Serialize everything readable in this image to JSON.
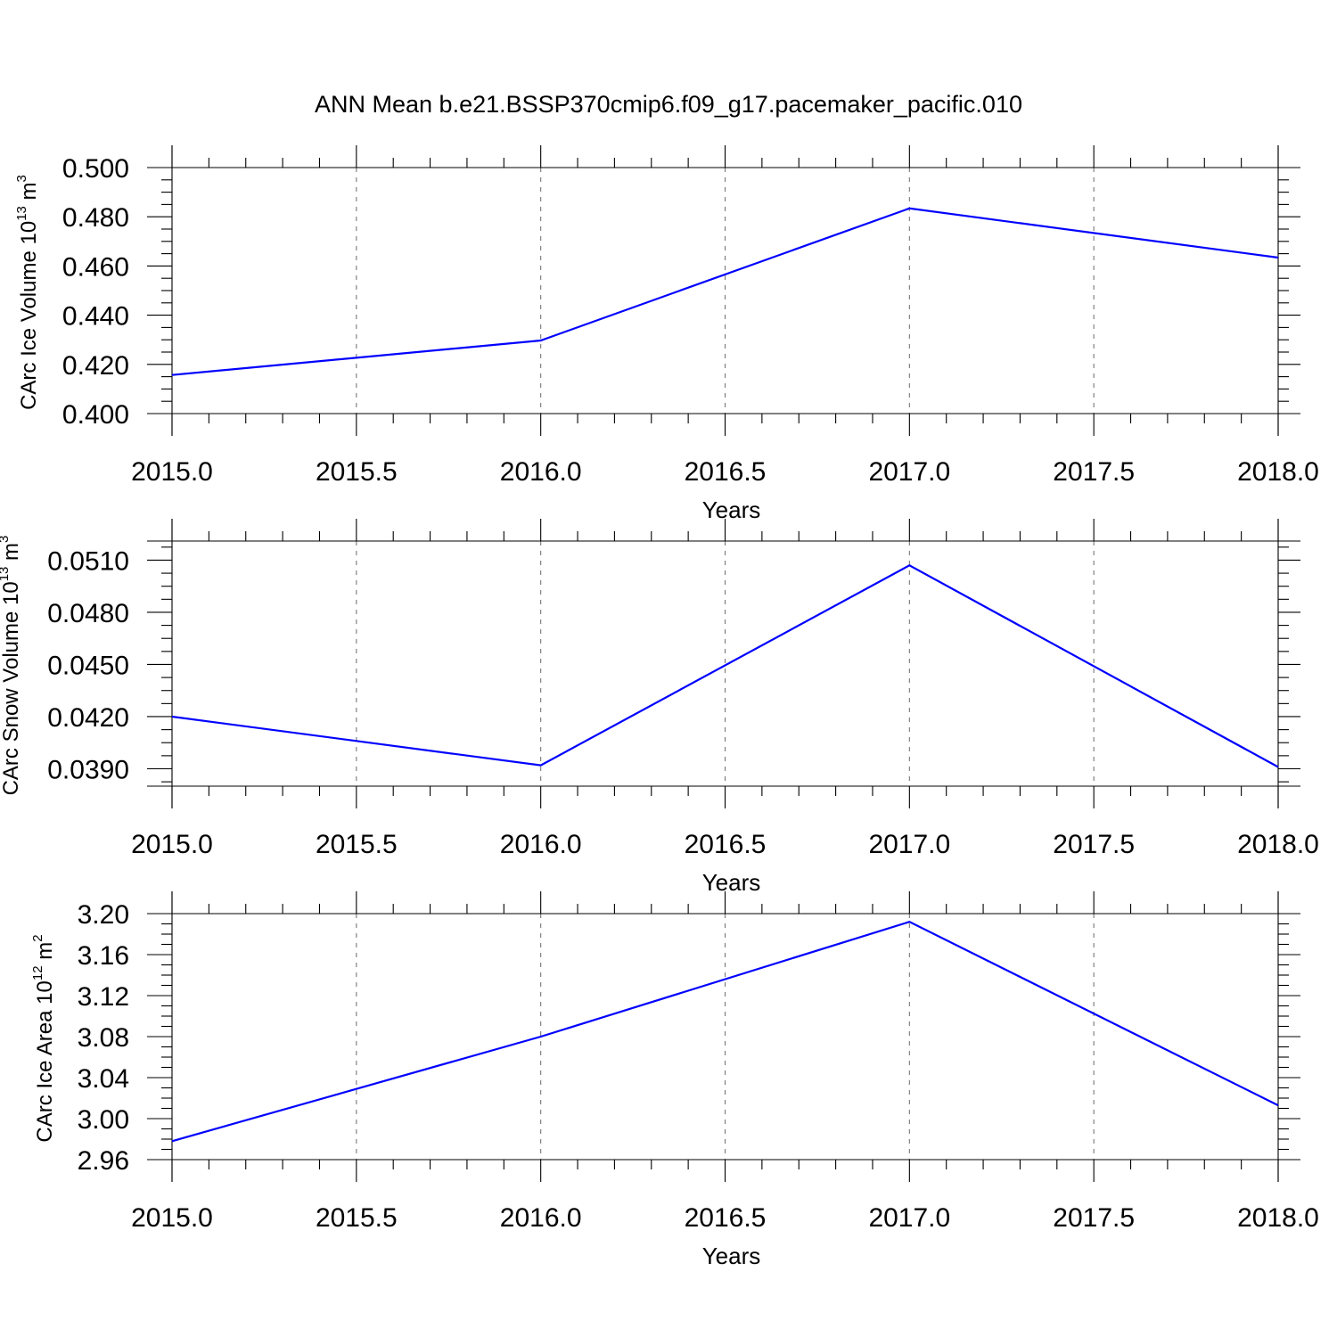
{
  "figure": {
    "title": "ANN Mean b.e21.BSSP370cmip6.f09_g17.pacemaker_pacific.010",
    "line_color": "#0000ff"
  },
  "chart_data": [
    {
      "type": "line",
      "xlabel": "Years",
      "ylabel": {
        "prefix": "CArc Ice Volume 10",
        "exponent": "13",
        "unit": " m",
        "unit_exponent": "3"
      },
      "xlim": [
        2015.0,
        2018.0
      ],
      "ylim": [
        0.4,
        0.5
      ],
      "x_ticks": [
        "2015.0",
        "2015.5",
        "2016.0",
        "2016.5",
        "2017.0",
        "2017.5",
        "2018.0"
      ],
      "y_ticks": [
        "0.400",
        "0.420",
        "0.440",
        "0.460",
        "0.480",
        "0.500"
      ],
      "grid": "vertical dashed at x ticks",
      "series": [
        {
          "x": [
            2015,
            2016,
            2017,
            2018
          ],
          "values": [
            0.4157,
            0.4297,
            0.4834,
            0.4634
          ]
        }
      ]
    },
    {
      "type": "line",
      "xlabel": "Years",
      "ylabel": {
        "prefix": "CArc Snow Volume 10",
        "exponent": "13",
        "unit": " m",
        "unit_exponent": "3"
      },
      "xlim": [
        2015.0,
        2018.0
      ],
      "ylim": [
        0.038,
        0.0521
      ],
      "x_ticks": [
        "2015.0",
        "2015.5",
        "2016.0",
        "2016.5",
        "2017.0",
        "2017.5",
        "2018.0"
      ],
      "y_ticks": [
        "0.0390",
        "0.0420",
        "0.0450",
        "0.0480",
        "0.0510"
      ],
      "grid": "vertical dashed at x ticks",
      "series": [
        {
          "x": [
            2015,
            2016,
            2017,
            2018
          ],
          "values": [
            0.042,
            0.0392,
            0.0507,
            0.0391
          ]
        }
      ]
    },
    {
      "type": "line",
      "xlabel": "Years",
      "ylabel": {
        "prefix": "CArc Ice Area 10",
        "exponent": "12",
        "unit": " m",
        "unit_exponent": "2"
      },
      "xlim": [
        2015.0,
        2018.0
      ],
      "ylim": [
        2.96,
        3.2
      ],
      "x_ticks": [
        "2015.0",
        "2015.5",
        "2016.0",
        "2016.5",
        "2017.0",
        "2017.5",
        "2018.0"
      ],
      "y_ticks": [
        "2.96",
        "3.00",
        "3.04",
        "3.08",
        "3.12",
        "3.16",
        "3.20"
      ],
      "grid": "vertical dashed at x ticks",
      "series": [
        {
          "x": [
            2015,
            2016,
            2017,
            2018
          ],
          "values": [
            2.978,
            3.08,
            3.192,
            3.013
          ]
        }
      ]
    }
  ]
}
